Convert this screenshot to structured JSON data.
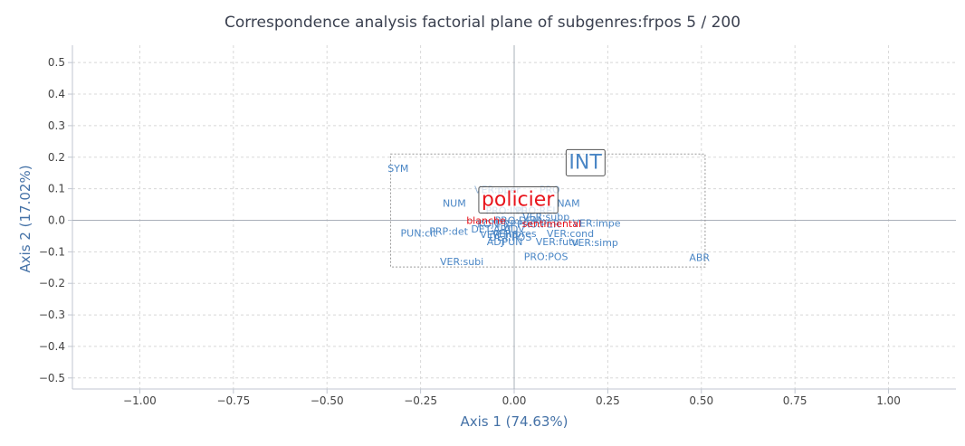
{
  "chart_data": {
    "type": "scatter",
    "title": "Correspondence analysis factorial plane of subgenres:frpos 5 / 200",
    "xlabel": "Axis 1 (74.63%)",
    "ylabel": "Axis 2 (17.02%)",
    "xlim": [
      -1.18,
      1.18
    ],
    "ylim": [
      -0.535,
      0.555
    ],
    "xticks": [
      -1.0,
      -0.75,
      -0.5,
      -0.25,
      0.0,
      0.25,
      0.5,
      0.75,
      1.0
    ],
    "xtick_labels": [
      "−1.00",
      "−0.75",
      "−0.50",
      "−0.25",
      "0.00",
      "0.25",
      "0.50",
      "0.75",
      "1.00"
    ],
    "yticks": [
      0.5,
      0.4,
      0.3,
      0.2,
      0.1,
      0.0,
      -0.1,
      -0.2,
      -0.3,
      -0.4,
      -0.5
    ],
    "ytick_labels": [
      "0.5",
      "0.4",
      "0.3",
      "0.2",
      "0.1",
      "0.0",
      "−0.1",
      "−0.2",
      "−0.3",
      "−0.4",
      "−0.5"
    ],
    "grid": true,
    "zoom_box": {
      "x": [
        -0.33,
        0.51
      ],
      "y": [
        -0.148,
        0.21
      ]
    },
    "colors": {
      "pos": "#4a86c5",
      "pos_faint": "#9bb9d8",
      "subgenre": "#e8141c",
      "grid": "#d8d8d8",
      "axis": "#c0c6d0"
    },
    "rows": [
      {
        "label": "SYM",
        "x": -0.31,
        "y": 0.165
      },
      {
        "label": "NUM",
        "x": -0.16,
        "y": 0.055
      },
      {
        "label": "NAM",
        "x": 0.145,
        "y": 0.055
      },
      {
        "label": "VER:pper",
        "x": -0.045,
        "y": 0.098,
        "faint": true
      },
      {
        "label": "PRO",
        "x": 0.095,
        "y": 0.098,
        "faint": true
      },
      {
        "label": "PRO:IND",
        "x": -0.02,
        "y": 0.032,
        "faint": true
      },
      {
        "label": "PRO:REL",
        "x": 0.06,
        "y": 0.032,
        "faint": true
      },
      {
        "label": "VER:subp",
        "x": 0.085,
        "y": 0.012
      },
      {
        "label": "PRO:DEM",
        "x": 0.01,
        "y": 0.0
      },
      {
        "label": "VER:impe",
        "x": 0.22,
        "y": -0.008
      },
      {
        "label": "KON",
        "x": -0.07,
        "y": -0.012
      },
      {
        "label": "PRP",
        "x": -0.02,
        "y": -0.012
      },
      {
        "label": "PRO:PER",
        "x": 0.065,
        "y": -0.012
      },
      {
        "label": "DET:ART",
        "x": -0.06,
        "y": -0.028
      },
      {
        "label": "ADV",
        "x": 0.0,
        "y": -0.028
      },
      {
        "label": "PUN:cit",
        "x": -0.255,
        "y": -0.04
      },
      {
        "label": "PRP:det",
        "x": -0.175,
        "y": -0.035
      },
      {
        "label": "VER:infi",
        "x": -0.04,
        "y": -0.045
      },
      {
        "label": "VER:pres",
        "x": 0.0,
        "y": -0.042
      },
      {
        "label": "VER:cond",
        "x": 0.15,
        "y": -0.042
      },
      {
        "label": "VER:futu",
        "x": 0.115,
        "y": -0.068
      },
      {
        "label": "VER:simp",
        "x": 0.215,
        "y": -0.07
      },
      {
        "label": "ADJ",
        "x": -0.05,
        "y": -0.068
      },
      {
        "label": "PUN",
        "x": -0.005,
        "y": -0.068
      },
      {
        "label": "DET:POS",
        "x": -0.01,
        "y": -0.053
      },
      {
        "label": "PRO:POS",
        "x": 0.085,
        "y": -0.115
      },
      {
        "label": "VER:subi",
        "x": -0.14,
        "y": -0.13
      },
      {
        "label": "ABR",
        "x": 0.495,
        "y": -0.118
      }
    ],
    "columns": [
      {
        "label": "INT",
        "x": 0.19,
        "y": 0.186,
        "size": 22,
        "color": "#4a86c5",
        "boxed": true
      },
      {
        "label": "policier",
        "x": 0.01,
        "y": 0.068,
        "size": 22,
        "color": "#e8141c",
        "boxed": true
      },
      {
        "label": "blanche",
        "x": -0.075,
        "y": 0.0,
        "size": 11,
        "color": "#e8141c",
        "boxed": false
      },
      {
        "label": "sentimental",
        "x": 0.1,
        "y": -0.01,
        "size": 11,
        "color": "#e8141c",
        "boxed": false
      }
    ]
  }
}
